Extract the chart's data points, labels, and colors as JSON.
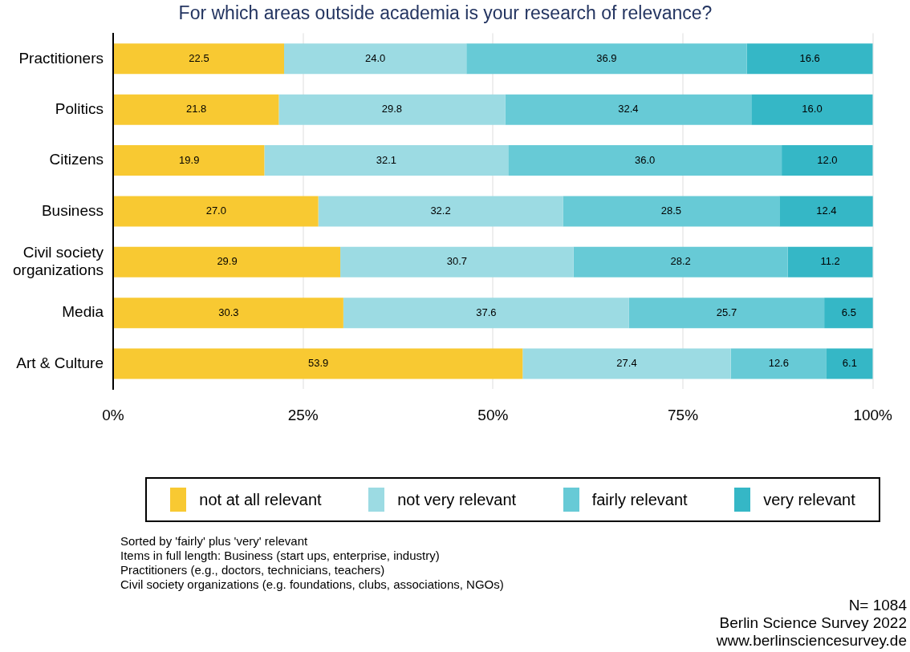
{
  "chart_data": {
    "type": "bar",
    "orientation": "horizontal",
    "stacked": true,
    "title": "For which areas outside academia is your research of relevance?",
    "categories": [
      "Practitioners",
      "Politics",
      "Citizens",
      "Business",
      "Civil society organizations",
      "Media",
      "Art & Culture"
    ],
    "series": [
      {
        "name": "not at all relevant",
        "color": "#f8c932",
        "values": [
          22.5,
          21.8,
          19.9,
          27.0,
          29.9,
          30.3,
          53.9
        ],
        "value_labels": [
          "22.5",
          "21.8",
          "19.9",
          "27.0",
          "29.9",
          "30.3",
          "53.9"
        ]
      },
      {
        "name": "not very relevant",
        "color": "#9cdbe3",
        "values": [
          24.0,
          29.8,
          32.1,
          32.2,
          30.7,
          37.6,
          27.4
        ],
        "value_labels": [
          "24.0",
          "29.8",
          "32.1",
          "32.2",
          "30.7",
          "37.6",
          "27.4"
        ]
      },
      {
        "name": "fairly relevant",
        "color": "#67cad6",
        "values": [
          36.9,
          32.4,
          36.0,
          28.5,
          28.2,
          25.7,
          12.6
        ],
        "value_labels": [
          "36.9",
          "32.4",
          "36.0",
          "28.5",
          "28.2",
          "25.7",
          "12.6"
        ]
      },
      {
        "name": "very relevant",
        "color": "#35b7c6",
        "values": [
          16.6,
          16.0,
          12.0,
          12.4,
          11.2,
          6.5,
          6.1
        ],
        "value_labels": [
          "16.6",
          "16.0",
          "12.0",
          "12.4",
          "11.2",
          "6.5",
          "6.1"
        ]
      }
    ],
    "xlim": [
      0,
      100
    ],
    "xticks": [
      {
        "value": 0,
        "label": "0%"
      },
      {
        "value": 25,
        "label": "25%"
      },
      {
        "value": 50,
        "label": "50%"
      },
      {
        "value": 75,
        "label": "75%"
      },
      {
        "value": 100,
        "label": "100%"
      }
    ],
    "grid": "x",
    "legend": "bottom",
    "annotations": [
      "Sorted by 'fairly' plus 'very' relevant",
      "Items in full length: Business (start ups, enterprise, industry)",
      "Practitioners (e.g., doctors, technicians, teachers)",
      "Civil society organizations (e.g. foundations, clubs, associations, NGOs)",
      "N= 1084",
      "Berlin Science Survey 2022",
      "www.berlinsciencesurvey.de"
    ]
  }
}
